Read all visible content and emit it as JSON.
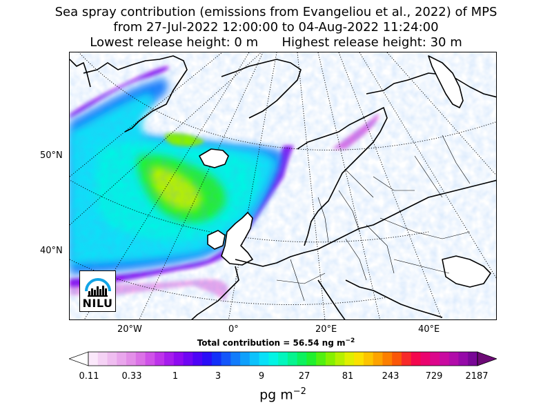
{
  "header": {
    "line1": "Sea spray contribution (emissions from Evangeliou et al., 2022) of MPS",
    "line2": "from 27-Jul-2022 12:00:00 to 04-Aug-2022 11:24:00",
    "line3": "Lowest release height: 0 m      Highest release height: 30 m"
  },
  "map": {
    "lat_labels": [
      "50°N",
      "40°N"
    ],
    "lon_labels": [
      "20°W",
      "0°",
      "20°E",
      "40°E"
    ]
  },
  "total_label": "Total contribution = 56.54 ng m",
  "total_superscript": "−2",
  "colorbar": {
    "tick_labels": [
      "0.11",
      "0.33",
      "1",
      "3",
      "9",
      "27",
      "81",
      "243",
      "729",
      "2187"
    ],
    "unit": "pg m",
    "unit_superscript": "−2",
    "colors": [
      "#fbe8fb",
      "#f5d2f5",
      "#efbdf0",
      "#e9a6ec",
      "#e38fe8",
      "#db72e6",
      "#cf52e8",
      "#bd33ea",
      "#a61ced",
      "#8e0af0",
      "#6f05f3",
      "#4d03f6",
      "#2a0df7",
      "#1330f8",
      "#1456fa",
      "#127cfb",
      "#0fa0fc",
      "#0cc2fc",
      "#08e0f8",
      "#02f4e4",
      "#03f6bd",
      "#06f48f",
      "#0cf25e",
      "#20f02e",
      "#52f010",
      "#86f000",
      "#b6f000",
      "#e0ef00",
      "#fbe100",
      "#fdc400",
      "#fda300",
      "#fc7f00",
      "#fa5708",
      "#f72a2a",
      "#f3074d",
      "#ea036e",
      "#dc068b",
      "#c90aa0",
      "#b10ca9",
      "#950aa8",
      "#780796"
    ],
    "under_color": "#ffffff",
    "over_color": "#6d0a76"
  },
  "logo": {
    "text": "NILU",
    "arc_color": "#12a4e6"
  }
}
